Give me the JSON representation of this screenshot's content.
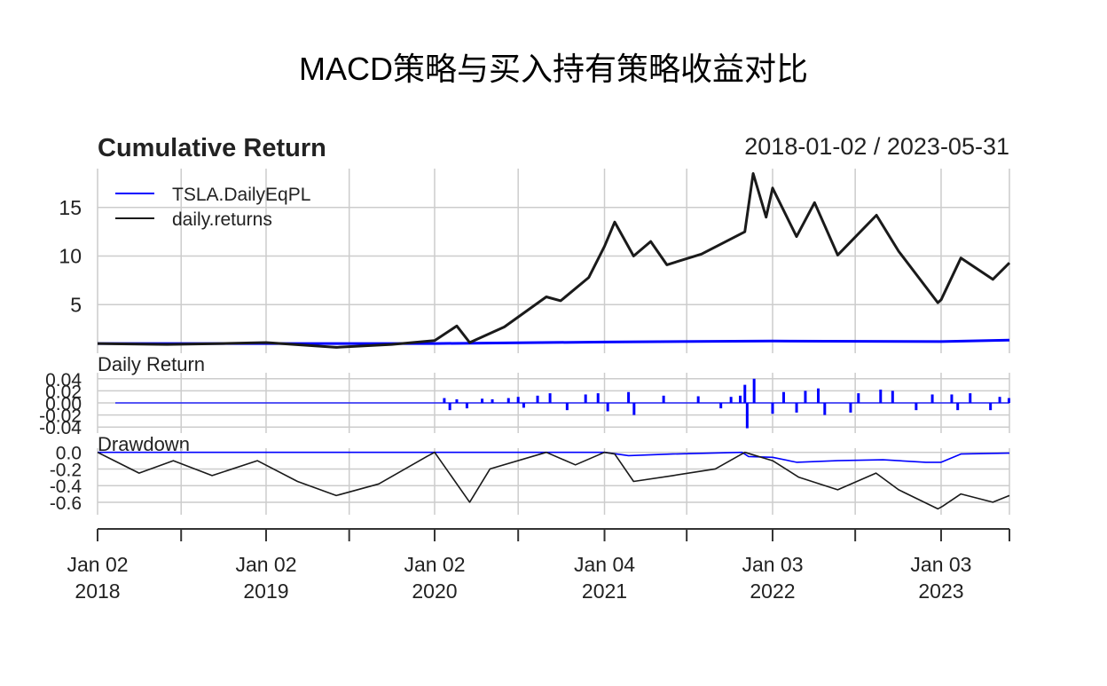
{
  "title": "MACD策略与买入持有策略收益对比",
  "date_range": "2018-01-02 / 2023-05-31",
  "colors": {
    "strategy": "#0000ff",
    "benchmark": "#1a1a1a",
    "grid": "#cccccc",
    "axis": "#333333"
  },
  "chart_data": [
    {
      "panel": "Cumulative Return",
      "type": "line",
      "title": "Cumulative Return",
      "ylim": [
        0,
        19
      ],
      "yticks": [
        5,
        10,
        15
      ],
      "ytick_labels": [
        "5",
        "10",
        "15"
      ],
      "grid": true,
      "legend_position": "top-left",
      "series": [
        {
          "name": "TSLA.DailyEqPL",
          "color": "#0000ff",
          "x": [
            "2018-01-02",
            "2019-01-02",
            "2020-01-02",
            "2021-01-04",
            "2022-01-03",
            "2023-01-03",
            "2023-05-31"
          ],
          "y": [
            1.0,
            1.0,
            1.0,
            1.15,
            1.25,
            1.2,
            1.35
          ]
        },
        {
          "name": "daily.returns",
          "color": "#1a1a1a",
          "x": [
            "2018-01-02",
            "2018-06-01",
            "2018-10-01",
            "2019-01-02",
            "2019-06-03",
            "2019-10-01",
            "2020-01-02",
            "2020-02-19",
            "2020-03-18",
            "2020-06-01",
            "2020-08-31",
            "2020-10-01",
            "2020-12-01",
            "2021-01-04",
            "2021-01-26",
            "2021-03-08",
            "2021-04-14",
            "2021-05-19",
            "2021-08-02",
            "2021-11-04",
            "2021-11-22",
            "2021-12-20",
            "2022-01-03",
            "2022-02-24",
            "2022-04-04",
            "2022-05-24",
            "2022-08-16",
            "2022-10-03",
            "2022-12-27",
            "2023-01-03",
            "2023-02-15",
            "2023-04-25",
            "2023-05-31"
          ],
          "y": [
            1.0,
            0.9,
            1.0,
            1.1,
            0.6,
            0.9,
            1.3,
            2.8,
            1.1,
            2.7,
            5.8,
            5.4,
            7.8,
            11.0,
            13.5,
            10.0,
            11.5,
            9.1,
            10.2,
            12.5,
            18.5,
            14.0,
            17.0,
            12.0,
            15.5,
            10.1,
            14.2,
            10.5,
            5.2,
            5.5,
            9.8,
            7.6,
            9.3
          ]
        }
      ]
    },
    {
      "panel": "Daily Return",
      "type": "bar",
      "title": "Daily Return",
      "ylim": [
        -0.05,
        0.05
      ],
      "yticks": [
        -0.04,
        -0.02,
        0.0,
        0.02,
        0.04
      ],
      "ytick_labels": [
        "-0.04",
        "-0.02",
        "0.00",
        "0.02",
        "0.04"
      ],
      "series": [
        {
          "name": "TSLA.DailyEqPL",
          "color": "#0000ff",
          "x": [
            "2020-01-23",
            "2020-02-04",
            "2020-02-19",
            "2020-03-12",
            "2020-04-14",
            "2020-05-06",
            "2020-06-10",
            "2020-07-01",
            "2020-07-13",
            "2020-08-12",
            "2020-09-08",
            "2020-10-15",
            "2020-11-24",
            "2020-12-21",
            "2021-01-11",
            "2021-02-25",
            "2021-03-09",
            "2021-05-12",
            "2021-07-26",
            "2021-09-13",
            "2021-10-05",
            "2021-10-25",
            "2021-11-04",
            "2021-11-09",
            "2021-11-24",
            "2022-01-03",
            "2022-01-27",
            "2022-02-24",
            "2022-03-15",
            "2022-04-12",
            "2022-04-26",
            "2022-06-21",
            "2022-07-08",
            "2022-08-25",
            "2022-09-20",
            "2022-11-10",
            "2022-12-15",
            "2023-01-26",
            "2023-02-08",
            "2023-03-07",
            "2023-04-20",
            "2023-05-10",
            "2023-05-30"
          ],
          "y": [
            0.008,
            -0.012,
            0.006,
            -0.009,
            0.007,
            0.006,
            0.008,
            0.01,
            -0.008,
            0.012,
            0.016,
            -0.012,
            0.014,
            0.016,
            -0.014,
            0.018,
            -0.02,
            0.012,
            0.011,
            -0.009,
            0.01,
            0.012,
            0.03,
            -0.042,
            0.04,
            -0.018,
            0.018,
            -0.016,
            0.02,
            0.024,
            -0.02,
            -0.016,
            0.016,
            0.022,
            0.02,
            -0.012,
            0.014,
            0.014,
            -0.012,
            0.016,
            -0.012,
            0.01,
            0.008
          ]
        }
      ]
    },
    {
      "panel": "Drawdown",
      "type": "line",
      "title": "Drawdown",
      "ylim": [
        -0.75,
        0.05
      ],
      "yticks": [
        -0.6,
        -0.4,
        -0.2,
        0.0
      ],
      "ytick_labels": [
        "-0.6",
        "-0.4",
        "-0.2",
        "0.0"
      ],
      "series": [
        {
          "name": "TSLA.DailyEqPL",
          "color": "#0000ff",
          "x": [
            "2018-01-02",
            "2020-01-02",
            "2021-01-04",
            "2021-02-25",
            "2021-06-01",
            "2021-10-29",
            "2021-11-12",
            "2022-01-03",
            "2022-02-24",
            "2022-05-24",
            "2022-08-30",
            "2022-12-01",
            "2023-01-03",
            "2023-02-15",
            "2023-05-31"
          ],
          "y": [
            0.0,
            0.0,
            0.0,
            -0.04,
            -0.02,
            0.0,
            -0.05,
            -0.06,
            -0.12,
            -0.1,
            -0.09,
            -0.12,
            -0.12,
            -0.02,
            -0.01
          ]
        },
        {
          "name": "daily.returns",
          "color": "#1a1a1a",
          "x": [
            "2018-01-02",
            "2018-04-02",
            "2018-06-15",
            "2018-09-07",
            "2018-12-14",
            "2019-03-11",
            "2019-06-03",
            "2019-09-03",
            "2019-12-16",
            "2020-01-02",
            "2020-03-18",
            "2020-05-01",
            "2020-08-31",
            "2020-11-02",
            "2021-01-04",
            "2021-01-26",
            "2021-03-08",
            "2021-06-01",
            "2021-09-01",
            "2021-11-04",
            "2022-01-03",
            "2022-03-01",
            "2022-05-24",
            "2022-08-15",
            "2022-10-03",
            "2022-12-27",
            "2023-01-06",
            "2023-02-15",
            "2023-04-25",
            "2023-05-31"
          ],
          "y": [
            0.0,
            -0.25,
            -0.1,
            -0.28,
            -0.1,
            -0.35,
            -0.52,
            -0.38,
            -0.05,
            0.0,
            -0.6,
            -0.2,
            0.0,
            -0.15,
            0.0,
            -0.02,
            -0.35,
            -0.28,
            -0.2,
            0.0,
            -0.1,
            -0.3,
            -0.45,
            -0.25,
            -0.45,
            -0.68,
            -0.65,
            -0.5,
            -0.6,
            -0.52
          ]
        }
      ]
    }
  ],
  "x_axis": {
    "range": [
      "2018-01-02",
      "2023-05-31"
    ],
    "labels": [
      {
        "date": "2018-01-02",
        "line1": "Jan 02",
        "line2": "2018"
      },
      {
        "date": "2019-01-02",
        "line1": "Jan 02",
        "line2": "2019"
      },
      {
        "date": "2020-01-02",
        "line1": "Jan 02",
        "line2": "2020"
      },
      {
        "date": "2021-01-04",
        "line1": "Jan 04",
        "line2": "2021"
      },
      {
        "date": "2022-01-03",
        "line1": "Jan 03",
        "line2": "2022"
      },
      {
        "date": "2023-01-03",
        "line1": "Jan 03",
        "line2": "2023"
      }
    ],
    "minor_ticks": [
      "2018-07-02",
      "2019-07-01",
      "2020-07-01",
      "2021-07-01",
      "2022-07-01",
      "2023-05-31"
    ]
  }
}
